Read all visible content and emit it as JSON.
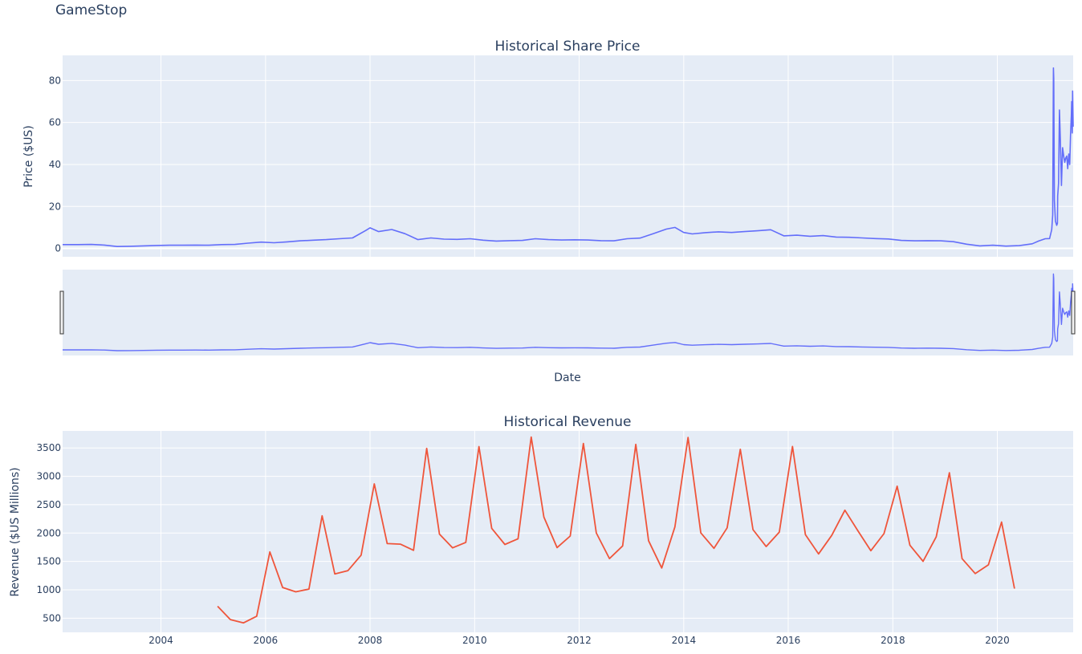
{
  "title": "GameStop",
  "chart_data": [
    {
      "type": "line",
      "title": "Historical Share Price",
      "xlabel": "Date",
      "ylabel": "Price ($US)",
      "x_range": [
        "2002-02-13",
        "2021-06-14"
      ],
      "ylim": [
        -4,
        92
      ],
      "y_ticks": [
        0,
        20,
        40,
        60,
        80
      ],
      "x_tick_labels": [
        "2004",
        "2006",
        "2008",
        "2010",
        "2012",
        "2014",
        "2016",
        "2018",
        "2020"
      ],
      "grid": true,
      "range_slider": true,
      "line_color": "#636efa",
      "series": [
        {
          "x": [
            "2002-02-13",
            "2002-06-01",
            "2002-09-01",
            "2002-12-01",
            "2003-03-01",
            "2003-06-01",
            "2003-09-01",
            "2003-12-01",
            "2004-03-01",
            "2004-06-01",
            "2004-09-01",
            "2004-12-01",
            "2005-03-01",
            "2005-06-01",
            "2005-09-01",
            "2005-12-01",
            "2006-03-01",
            "2006-06-01",
            "2006-09-01",
            "2006-12-01",
            "2007-03-01",
            "2007-06-01",
            "2007-09-01",
            "2007-12-01",
            "2008-01-01",
            "2008-03-01",
            "2008-06-01",
            "2008-09-01",
            "2008-12-01",
            "2009-03-01",
            "2009-06-01",
            "2009-09-01",
            "2009-12-01",
            "2010-03-01",
            "2010-06-01",
            "2010-09-01",
            "2010-12-01",
            "2011-03-01",
            "2011-06-01",
            "2011-09-01",
            "2011-12-01",
            "2012-03-01",
            "2012-06-01",
            "2012-09-01",
            "2012-12-01",
            "2013-03-01",
            "2013-06-01",
            "2013-09-01",
            "2013-11-01",
            "2014-01-01",
            "2014-03-01",
            "2014-06-01",
            "2014-09-01",
            "2014-12-01",
            "2015-03-01",
            "2015-06-01",
            "2015-09-01",
            "2015-12-01",
            "2016-03-01",
            "2016-06-01",
            "2016-09-01",
            "2016-12-01",
            "2017-03-01",
            "2017-06-01",
            "2017-09-01",
            "2017-12-01",
            "2018-03-01",
            "2018-06-01",
            "2018-09-01",
            "2018-12-01",
            "2019-03-01",
            "2019-06-01",
            "2019-09-01",
            "2019-12-01",
            "2020-03-01",
            "2020-06-01",
            "2020-09-01",
            "2020-10-15",
            "2020-12-01",
            "2020-12-31",
            "2021-01-15",
            "2021-01-22",
            "2021-01-27",
            "2021-01-29",
            "2021-02-03",
            "2021-02-10",
            "2021-02-19",
            "2021-02-24",
            "2021-02-26",
            "2021-03-04",
            "2021-03-10",
            "2021-03-16",
            "2021-03-24",
            "2021-04-01",
            "2021-04-09",
            "2021-04-16",
            "2021-04-23",
            "2021-04-30",
            "2021-05-07",
            "2021-05-14",
            "2021-05-21",
            "2021-05-27",
            "2021-06-01",
            "2021-06-04",
            "2021-06-08",
            "2021-06-10",
            "2021-06-14"
          ],
          "y": [
            1.8,
            1.8,
            1.9,
            1.6,
            0.9,
            1.0,
            1.2,
            1.4,
            1.5,
            1.5,
            1.6,
            1.5,
            1.8,
            1.9,
            2.5,
            3.0,
            2.7,
            3.1,
            3.6,
            3.9,
            4.2,
            4.6,
            5.0,
            8.5,
            9.8,
            8.0,
            9.0,
            7.0,
            4.2,
            5.0,
            4.4,
            4.3,
            4.6,
            3.9,
            3.5,
            3.7,
            3.8,
            4.6,
            4.2,
            4.0,
            4.1,
            4.0,
            3.7,
            3.6,
            4.6,
            4.9,
            7.0,
            9.2,
            10.0,
            7.6,
            6.9,
            7.5,
            7.9,
            7.6,
            8.0,
            8.4,
            8.9,
            6.0,
            6.3,
            5.8,
            6.1,
            5.4,
            5.3,
            5.0,
            4.7,
            4.5,
            3.8,
            3.6,
            3.7,
            3.6,
            3.2,
            2.0,
            1.2,
            1.5,
            1.1,
            1.3,
            2.2,
            3.5,
            4.6,
            4.7,
            9.0,
            16.0,
            86.0,
            81.0,
            23.0,
            13.0,
            11.0,
            12.0,
            25.0,
            31.0,
            66.0,
            52.0,
            30.0,
            48.0,
            44.0,
            41.0,
            43.0,
            44.0,
            38.0,
            45.0,
            40.0,
            55.0,
            63.0,
            70.0,
            55.0,
            75.0,
            58.0
          ]
        }
      ]
    },
    {
      "type": "line",
      "title": "Historical Revenue",
      "xlabel": "",
      "ylabel": "Revenue ($US Millions)",
      "x_range": [
        "2002-02-13",
        "2021-06-14"
      ],
      "ylim": [
        250,
        3800
      ],
      "y_ticks": [
        500,
        1000,
        1500,
        2000,
        2500,
        3000,
        3500
      ],
      "x_tick_labels": [
        "2004",
        "2006",
        "2008",
        "2010",
        "2012",
        "2014",
        "2016",
        "2018",
        "2020"
      ],
      "grid": true,
      "line_color": "#ef553b",
      "series": [
        {
          "x": [
            "2005-01-31",
            "2005-04-30",
            "2005-07-31",
            "2005-10-31",
            "2006-01-31",
            "2006-04-30",
            "2006-07-31",
            "2006-10-31",
            "2007-01-31",
            "2007-04-30",
            "2007-07-31",
            "2007-10-31",
            "2008-01-31",
            "2008-04-30",
            "2008-07-31",
            "2008-10-31",
            "2009-01-31",
            "2009-04-30",
            "2009-07-31",
            "2009-10-31",
            "2010-01-31",
            "2010-04-30",
            "2010-07-31",
            "2010-10-31",
            "2011-01-31",
            "2011-04-30",
            "2011-07-31",
            "2011-10-31",
            "2012-01-31",
            "2012-04-30",
            "2012-07-31",
            "2012-10-31",
            "2013-01-31",
            "2013-04-30",
            "2013-07-31",
            "2013-10-31",
            "2014-01-31",
            "2014-04-30",
            "2014-07-31",
            "2014-10-31",
            "2015-01-31",
            "2015-04-30",
            "2015-07-31",
            "2015-10-31",
            "2016-01-31",
            "2016-04-30",
            "2016-07-31",
            "2016-10-31",
            "2017-01-31",
            "2017-04-30",
            "2017-07-31",
            "2017-10-31",
            "2018-01-31",
            "2018-04-30",
            "2018-07-31",
            "2018-10-31",
            "2019-01-31",
            "2019-04-30",
            "2019-07-31",
            "2019-10-31",
            "2020-01-31",
            "2020-04-30"
          ],
          "y": [
            709,
            475,
            417,
            534,
            1667,
            1041,
            964,
            1012,
            2304,
            1279,
            1338,
            1611,
            2866,
            1814,
            1805,
            1696,
            3492,
            1981,
            1739,
            1835,
            3524,
            2083,
            1799,
            1899,
            3693,
            2281,
            1744,
            1947,
            3579,
            2002,
            1550,
            1773,
            3562,
            1865,
            1384,
            2107,
            3684,
            2002,
            1731,
            2092,
            3476,
            2061,
            1762,
            2016,
            3525,
            1972,
            1632,
            1959,
            2403,
            2046,
            1688,
            1989,
            2825,
            1786,
            1501,
            1935,
            3063,
            1548,
            1286,
            1439,
            2194,
            1021
          ]
        }
      ]
    }
  ]
}
